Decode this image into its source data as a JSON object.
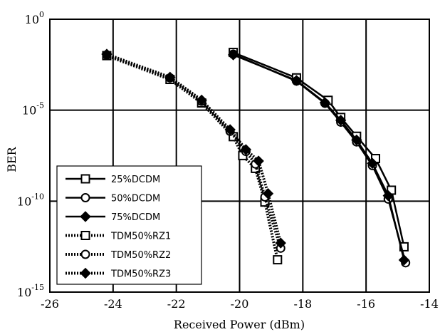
{
  "chart_data": {
    "type": "line",
    "title": "",
    "xlabel": "Received Power (dBm)",
    "ylabel": "BER",
    "x_ticks": [
      "-26",
      "-24",
      "-22",
      "-20",
      "-18",
      "-16",
      "-14"
    ],
    "y_ticks": [
      {
        "base": "10",
        "exp": "0",
        "value": 1
      },
      {
        "base": "10",
        "exp": "-5",
        "value": 1e-05
      },
      {
        "base": "10",
        "exp": "-10",
        "value": 1e-10
      },
      {
        "base": "10",
        "exp": "-15",
        "value": 1e-15
      }
    ],
    "xlim": [
      -26,
      -14
    ],
    "ylim_log10": [
      -15,
      0
    ],
    "y_scale": "log",
    "grid": true,
    "legend_placement": "bottom-left",
    "series": [
      {
        "name": "25%DCDM",
        "line": "solid",
        "marker": "square",
        "x": [
          -20.2,
          -18.2,
          -17.2,
          -16.8,
          -16.3,
          -15.7,
          -15.2,
          -14.8
        ],
        "y": [
          0.015,
          0.0006,
          3.5e-05,
          4e-06,
          3.7e-07,
          2.2e-08,
          4e-10,
          3.1e-13
        ]
      },
      {
        "name": "50%DCDM",
        "line": "solid",
        "marker": "circle",
        "x": [
          -20.2,
          -18.2,
          -17.3,
          -16.8,
          -16.3,
          -15.8,
          -15.3,
          -14.75
        ],
        "y": [
          0.012,
          0.0004,
          2.4e-05,
          2.2e-06,
          1.8e-07,
          9e-09,
          1.3e-10,
          4.1e-14
        ]
      },
      {
        "name": "75%DCDM",
        "line": "solid",
        "marker": "diamond",
        "x": [
          -20.2,
          -18.2,
          -17.3,
          -16.8,
          -16.3,
          -15.8,
          -15.3,
          -14.8
        ],
        "y": [
          0.011,
          0.00043,
          2.6e-05,
          2.8e-06,
          2.3e-07,
          1.2e-08,
          2e-10,
          5.8e-14
        ]
      },
      {
        "name": "TDM50%RZ1",
        "line": "dotted",
        "marker": "square",
        "x": [
          -24.2,
          -22.2,
          -21.2,
          -20.2,
          -19.9,
          -19.5,
          -19.2,
          -18.8
        ],
        "y": [
          0.01,
          0.00049,
          2.5e-05,
          3.5e-07,
          3.2e-08,
          6.3e-09,
          8.9e-11,
          6e-14
        ]
      },
      {
        "name": "TDM50%RZ2",
        "line": "dotted",
        "marker": "circle",
        "x": [
          -24.2,
          -22.2,
          -21.2,
          -20.3,
          -19.8,
          -19.5,
          -19.2,
          -18.7
        ],
        "y": [
          0.011,
          0.0006,
          3.1e-05,
          6.9e-07,
          5.4e-08,
          1.1e-08,
          1.7e-10,
          2.6e-13
        ]
      },
      {
        "name": "TDM50%RZ3",
        "line": "dotted",
        "marker": "diamond",
        "x": [
          -24.2,
          -22.2,
          -21.2,
          -20.3,
          -19.8,
          -19.4,
          -19.1,
          -18.7
        ],
        "y": [
          0.012,
          0.00065,
          3.6e-05,
          8.5e-07,
          6.8e-08,
          1.6e-08,
          2.6e-10,
          5e-13
        ]
      }
    ]
  }
}
